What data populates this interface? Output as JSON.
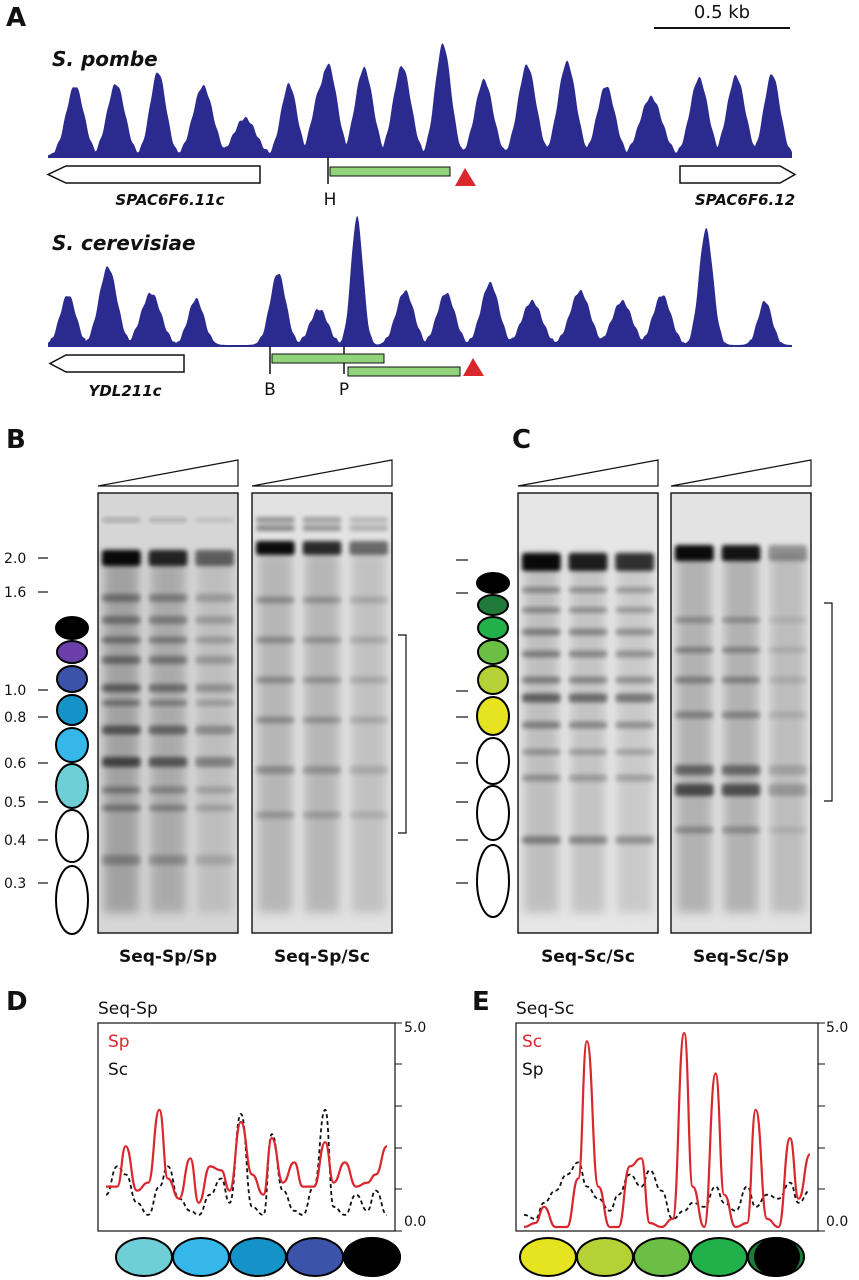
{
  "panels": {
    "a": "A",
    "b": "B",
    "c": "C",
    "d": "D",
    "e": "E"
  },
  "panel_a": {
    "scale_bar": "0.5 kb",
    "track1": {
      "organism": "S. pombe",
      "gene_left": "SPAC6F6.11c",
      "gene_right": "SPAC6F6.12",
      "site": "H"
    },
    "track2": {
      "organism": "S. cerevisiae",
      "gene_left": "YDL211c",
      "site_1": "B",
      "site_2": "P"
    },
    "colors": {
      "profile": "#2b2b8f",
      "probe": "#8fd37a",
      "marker": "#d9272e"
    }
  },
  "gel_b": {
    "size_labels": [
      "2.0",
      "1.6",
      "1.0",
      "0.8",
      "0.6",
      "0.5",
      "0.4",
      "0.3"
    ],
    "lanes": [
      "Seq-Sp/Sp",
      "Seq-Sp/Sc"
    ]
  },
  "gel_c": {
    "lanes": [
      "Seq-Sc/Sc",
      "Seq-Sc/Sp"
    ]
  },
  "nucleosome_colors_b": [
    "#000000",
    "#6a3fa8",
    "#3b53a8",
    "#1493c9",
    "#36b7ea",
    "#6fcfd6",
    "#ffffff",
    "#ffffff"
  ],
  "nucleosome_colors_c": [
    "#000000",
    "#1f7a3a",
    "#22b04b",
    "#6bbf45",
    "#b6d135",
    "#e6e320",
    "#ffffff",
    "#ffffff",
    "#ffffff"
  ],
  "chart_d": {
    "title": "Seq-Sp",
    "series": [
      {
        "name": "Sp"
      },
      {
        "name": "Sc"
      }
    ],
    "y_ticks": [
      "5.0",
      "0.0"
    ],
    "legend_colors": [
      "#6fcfd6",
      "#36b7ea",
      "#1493c9",
      "#3b53a8",
      "#6a3fa8",
      "#000000"
    ]
  },
  "chart_e": {
    "title": "Seq-Sc",
    "series": [
      {
        "name": "Sc"
      },
      {
        "name": "Sp"
      }
    ],
    "y_ticks": [
      "5.0",
      "0.0"
    ],
    "legend_colors": [
      "#e6e320",
      "#b6d135",
      "#6bbf45",
      "#22b04b",
      "#1f7a3a",
      "#000000"
    ]
  },
  "chart_data": [
    {
      "type": "line",
      "title": "Seq-Sp",
      "ylim": [
        0,
        5
      ],
      "x": [
        0,
        4,
        7,
        11,
        15,
        19,
        22,
        26,
        30,
        33,
        37,
        41,
        44,
        48,
        52,
        56,
        59,
        63,
        67,
        70,
        74,
        78,
        81,
        85,
        89,
        93,
        96,
        100
      ],
      "series": [
        {
          "name": "Sp",
          "values": [
            1.0,
            1.0,
            2.0,
            0.9,
            1.1,
            2.9,
            1.2,
            0.7,
            1.7,
            0.6,
            1.5,
            1.4,
            0.9,
            2.6,
            1.3,
            0.8,
            2.2,
            1.1,
            1.6,
            1.0,
            1.0,
            2.1,
            1.1,
            1.6,
            1.0,
            1.1,
            1.3,
            2.0
          ]
        },
        {
          "name": "Sc",
          "values": [
            0.8,
            1.5,
            1.3,
            0.6,
            0.3,
            1.0,
            1.5,
            0.7,
            0.4,
            0.3,
            0.8,
            1.2,
            0.6,
            2.8,
            0.5,
            0.3,
            2.3,
            0.9,
            0.4,
            0.3,
            1.0,
            2.9,
            0.5,
            0.3,
            0.8,
            0.4,
            0.9,
            0.3
          ]
        }
      ]
    },
    {
      "type": "line",
      "title": "Seq-Sc",
      "ylim": [
        0,
        5
      ],
      "x": [
        0,
        4,
        7,
        11,
        15,
        19,
        22,
        26,
        30,
        33,
        37,
        41,
        44,
        48,
        52,
        56,
        59,
        63,
        67,
        70,
        74,
        78,
        81,
        85,
        89,
        93,
        96,
        100
      ],
      "series": [
        {
          "name": "Sc",
          "values": [
            0.0,
            0.1,
            0.5,
            0.0,
            0.0,
            1.2,
            4.6,
            1.0,
            0.0,
            0.0,
            1.5,
            1.7,
            0.1,
            0.0,
            0.2,
            4.8,
            1.0,
            0.0,
            3.8,
            0.8,
            0.0,
            0.1,
            2.9,
            0.2,
            0.0,
            2.2,
            0.7,
            1.8
          ]
        },
        {
          "name": "Sp",
          "values": [
            0.3,
            0.2,
            0.6,
            0.9,
            1.3,
            1.6,
            1.0,
            0.7,
            0.4,
            0.8,
            1.3,
            1.0,
            1.4,
            0.9,
            0.2,
            0.4,
            0.6,
            0.5,
            1.0,
            0.6,
            0.4,
            1.0,
            0.5,
            0.8,
            0.7,
            1.1,
            0.6,
            0.9
          ]
        }
      ]
    }
  ]
}
